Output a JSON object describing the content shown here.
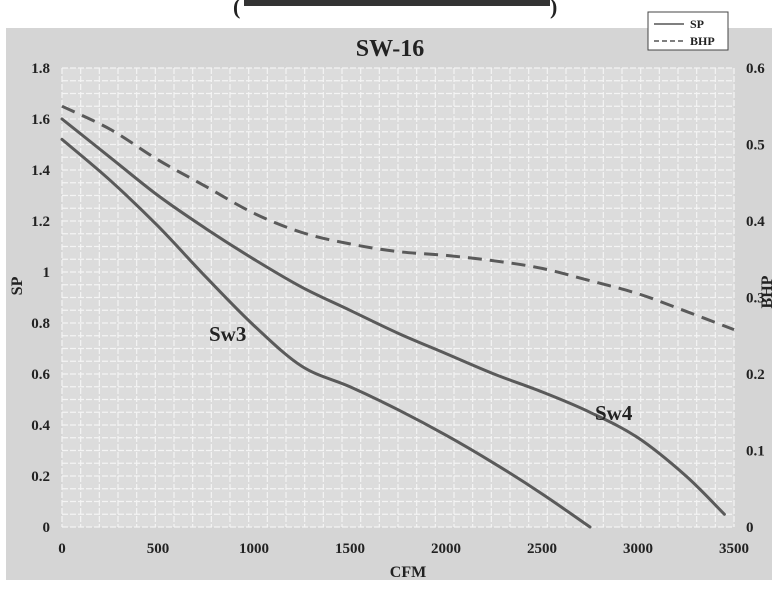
{
  "header_fragment": "(",
  "chart_data": {
    "type": "line",
    "title": "SW-16",
    "xlabel": "CFM",
    "ylabel_left": "SP",
    "ylabel_right": "BHP",
    "xlim": [
      0,
      3500
    ],
    "ylim_left": [
      0,
      1.8
    ],
    "ylim_right": [
      0,
      0.6
    ],
    "x_ticks": [
      0,
      500,
      1000,
      1500,
      2000,
      2500,
      3000,
      3500
    ],
    "x_tick_labels": [
      "0",
      "500",
      "1000",
      "1500",
      "2000",
      "2500",
      "3000",
      "3500"
    ],
    "y_left_ticks": [
      0,
      0.2,
      0.4,
      0.6,
      0.8,
      1.0,
      1.2,
      1.4,
      1.6,
      1.8
    ],
    "y_left_tick_labels": [
      "0",
      "0.2",
      "0.4",
      "0.6",
      "0.8",
      "1",
      "1.2",
      "1.4",
      "1.6",
      "1.8"
    ],
    "y_right_ticks": [
      0,
      0.1,
      0.2,
      0.3,
      0.4,
      0.5,
      0.6
    ],
    "y_right_tick_labels": [
      "0",
      "0.1",
      "0.2",
      "0.3",
      "0.4",
      "0.5",
      "0.6"
    ],
    "grid": true,
    "legend_position": "top-right",
    "legend": [
      {
        "label": "SP",
        "style": "solid"
      },
      {
        "label": "BHP",
        "style": "dashed"
      }
    ],
    "series": [
      {
        "name": "Sw3",
        "axis": "left",
        "style": "solid",
        "x": [
          0,
          250,
          500,
          750,
          1000,
          1250,
          1500,
          1750,
          2000,
          2250,
          2500,
          2750
        ],
        "y": [
          1.52,
          1.36,
          1.18,
          0.98,
          0.79,
          0.63,
          0.55,
          0.46,
          0.36,
          0.25,
          0.13,
          0.0
        ]
      },
      {
        "name": "Sw4",
        "axis": "left",
        "style": "solid",
        "x": [
          0,
          250,
          500,
          750,
          1000,
          1250,
          1500,
          1750,
          2000,
          2250,
          2500,
          2750,
          3000,
          3250,
          3450
        ],
        "y": [
          1.6,
          1.45,
          1.3,
          1.17,
          1.05,
          0.94,
          0.85,
          0.76,
          0.68,
          0.6,
          0.53,
          0.45,
          0.35,
          0.2,
          0.05
        ]
      },
      {
        "name": "BHP",
        "axis": "right",
        "style": "dashed",
        "x": [
          0,
          250,
          500,
          750,
          1000,
          1250,
          1500,
          1750,
          2000,
          2250,
          2500,
          2750,
          3000,
          3250,
          3500
        ],
        "y": [
          0.55,
          0.52,
          0.48,
          0.445,
          0.41,
          0.385,
          0.37,
          0.36,
          0.355,
          0.348,
          0.338,
          0.322,
          0.305,
          0.282,
          0.258
        ]
      }
    ]
  }
}
